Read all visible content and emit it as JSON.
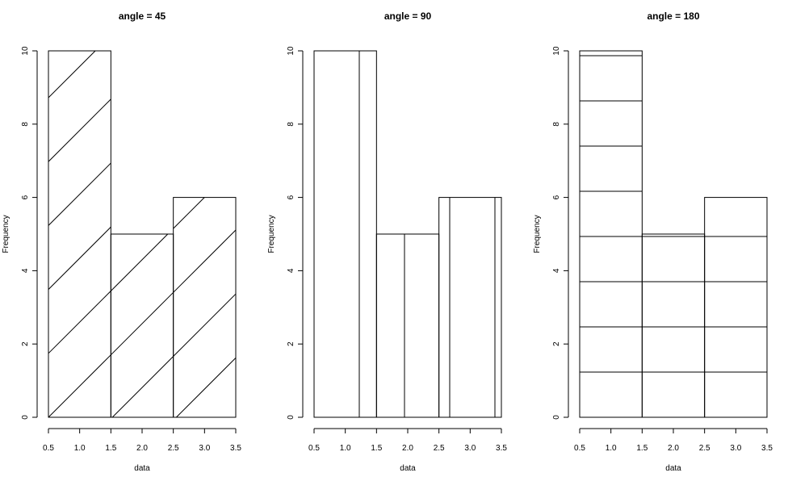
{
  "chart_data": [
    {
      "type": "bar",
      "title": "angle = 45",
      "xlabel": "data",
      "ylabel": "Frequency",
      "bins": [
        [
          0.5,
          1.5
        ],
        [
          1.5,
          2.5
        ],
        [
          2.5,
          3.5
        ]
      ],
      "values": [
        10,
        5,
        6
      ],
      "xlim": [
        0.5,
        3.5
      ],
      "ylim": [
        0,
        10
      ],
      "xticks": [
        "0.5",
        "1.0",
        "1.5",
        "2.0",
        "2.5",
        "3.0",
        "3.5"
      ],
      "yticks": [
        "0",
        "2",
        "4",
        "6",
        "8",
        "10"
      ],
      "fill": "hatch",
      "hatch_angle": 45,
      "grid": false,
      "colors": {
        "line": "#000000",
        "background": "#ffffff"
      }
    },
    {
      "type": "bar",
      "title": "angle = 90",
      "xlabel": "data",
      "ylabel": "Frequency",
      "bins": [
        [
          0.5,
          1.5
        ],
        [
          1.5,
          2.5
        ],
        [
          2.5,
          3.5
        ]
      ],
      "values": [
        10,
        5,
        6
      ],
      "xlim": [
        0.5,
        3.5
      ],
      "ylim": [
        0,
        10
      ],
      "xticks": [
        "0.5",
        "1.0",
        "1.5",
        "2.0",
        "2.5",
        "3.0",
        "3.5"
      ],
      "yticks": [
        "0",
        "2",
        "4",
        "6",
        "8",
        "10"
      ],
      "fill": "hatch",
      "hatch_angle": 90,
      "grid": false,
      "colors": {
        "line": "#000000",
        "background": "#ffffff"
      }
    },
    {
      "type": "bar",
      "title": "angle = 180",
      "xlabel": "data",
      "ylabel": "Frequency",
      "bins": [
        [
          0.5,
          1.5
        ],
        [
          1.5,
          2.5
        ],
        [
          2.5,
          3.5
        ]
      ],
      "values": [
        10,
        5,
        6
      ],
      "xlim": [
        0.5,
        3.5
      ],
      "ylim": [
        0,
        10
      ],
      "xticks": [
        "0.5",
        "1.0",
        "1.5",
        "2.0",
        "2.5",
        "3.0",
        "3.5"
      ],
      "yticks": [
        "0",
        "2",
        "4",
        "6",
        "8",
        "10"
      ],
      "fill": "hatch",
      "hatch_angle": 180,
      "grid": false,
      "colors": {
        "line": "#000000",
        "background": "#ffffff"
      }
    }
  ]
}
